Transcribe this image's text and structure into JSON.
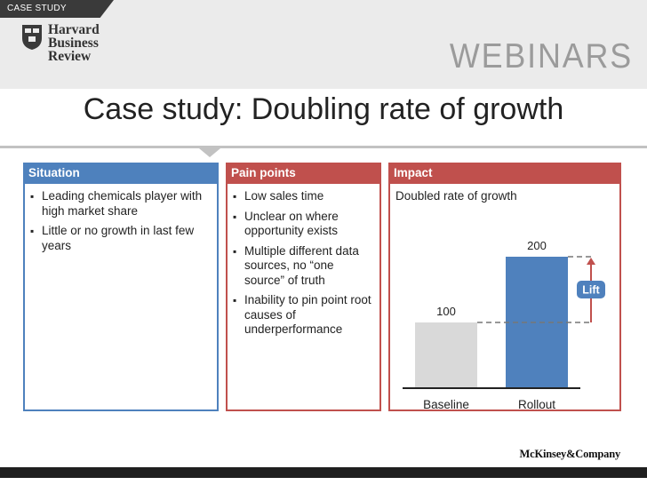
{
  "header": {
    "tab_label": "CASE STUDY",
    "logo_lines": [
      "Harvard",
      "Business",
      "Review"
    ],
    "banner": "WEBINARS"
  },
  "title": "Case study: Doubling rate of growth",
  "situation": {
    "heading": "Situation",
    "bullets": [
      "Leading chemicals player with high market share",
      "Little or no growth in last few years"
    ]
  },
  "pain_points": {
    "heading": "Pain points",
    "bullets": [
      "Low sales time",
      "Unclear on where opportunity exists",
      "Multiple different data sources, no “one source” of truth",
      "Inability to pin point root causes of underperformance"
    ]
  },
  "impact": {
    "heading": "Impact",
    "subtitle": "Doubled rate of growth",
    "lift_label": "Lift"
  },
  "chart_data": {
    "type": "bar",
    "title": "Doubled rate of growth",
    "categories": [
      "Baseline",
      "Rollout"
    ],
    "values": [
      100,
      200
    ],
    "colors": [
      "#d9d9d9",
      "#4f81bd"
    ],
    "xlabel": "",
    "ylabel": "",
    "ylim": [
      0,
      200
    ],
    "annotation": "Lift",
    "grid": false
  },
  "colors": {
    "situation": "#4e81bd",
    "pain_points": "#c0504d",
    "impact": "#c0504d",
    "lift_badge": "#4f81bd"
  },
  "footer": {
    "brand": "McKinsey&Company"
  }
}
